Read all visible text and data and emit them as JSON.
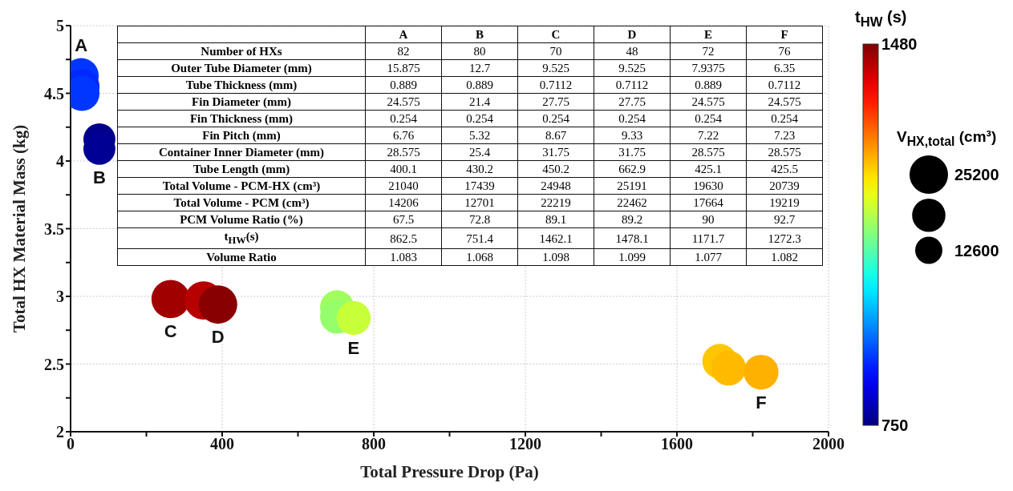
{
  "chart_data": [
    {
      "type": "bubble",
      "xlabel": "Total Pressure Drop (Pa)",
      "ylabel": "Total HX Material Mass (kg)",
      "clabel": "t$_{HW}$ (s)",
      "legend_title": "V$_{HX,total}$ (cm³)",
      "xlim": [
        0,
        2000
      ],
      "xticks": [
        0,
        {
          "value": 200,
          "label": null
        },
        400,
        {
          "value": 600,
          "label": null
        },
        800,
        {
          "value": 1000,
          "label": null
        },
        1200,
        {
          "value": 1400,
          "label": null
        },
        1600,
        {
          "value": 1800,
          "label": null
        },
        2000
      ],
      "ylim": [
        2,
        5
      ],
      "yticks": [
        2,
        {
          "value": 2.25,
          "label": null
        },
        2.5,
        {
          "value": 2.75,
          "label": null
        },
        3,
        {
          "value": 3.25,
          "label": null
        },
        3.5,
        {
          "value": 3.75,
          "label": null
        },
        4,
        {
          "value": 4.25,
          "label": null
        },
        4.5,
        {
          "value": 4.75,
          "label": null
        },
        5
      ],
      "clim": [
        750,
        1480
      ],
      "cticks": [
        750,
        1480
      ],
      "size_legend": [
        25200,
        12600
      ],
      "grid": true,
      "marker": "circle",
      "series": [
        {
          "x": [
            28,
            30,
            30,
            76,
            76,
            264,
            351,
            389,
            703,
            703,
            747,
            1713,
            1736,
            1822
          ],
          "values": [
            4.63,
            4.55,
            4.5,
            4.16,
            4.09,
            2.98,
            2.97,
            2.94,
            2.92,
            2.85,
            2.84,
            2.52,
            2.47,
            2.44
          ],
          "sizes": [
            21000,
            21000,
            21000,
            17400,
            17400,
            25000,
            25000,
            25200,
            19600,
            19600,
            19600,
            20700,
            20700,
            20700
          ],
          "cvalues": [
            880,
            870,
            880,
            760,
            765,
            1456,
            1440,
            1473,
            1138,
            1130,
            1166,
            1246,
            1255,
            1262
          ]
        }
      ],
      "annotations": [
        {
          "text": "A",
          "x": 28,
          "y": 4.63
        },
        {
          "text": "B",
          "x": 76,
          "y": 4.09
        },
        {
          "text": "C",
          "x": 264,
          "y": 2.98
        },
        {
          "text": "D",
          "x": 389,
          "y": 2.94
        },
        {
          "text": "E",
          "x": 747,
          "y": 2.84
        },
        {
          "text": "F",
          "x": 1822,
          "y": 2.44
        }
      ]
    },
    {
      "type": "other",
      "categories": [
        "A",
        "B",
        "C",
        "D",
        "E",
        "F"
      ],
      "y_categories": [
        "Number of HXs",
        "Outer Tube Diameter (mm)",
        "Tube Thickness (mm)",
        "Fin Diameter (mm)",
        "Fin Thickness (mm)",
        "Fin Pitch (mm)",
        "Container Inner Diameter (mm)",
        "Tube Length (mm)",
        "Total Volume - PCM-HX (cm³)",
        "Total Volume - PCM (cm³)",
        "PCM Volume Ratio (%)",
        "t$_{HW}$(s)",
        "Volume Ratio"
      ],
      "cell_labels": [
        [
          "82",
          "80",
          "70",
          "48",
          "72",
          "76"
        ],
        [
          "15.875",
          "12.7",
          "9.525",
          "9.525",
          "7.9375",
          "6.35"
        ],
        [
          "0.889",
          "0.889",
          "0.7112",
          "0.7112",
          "0.889",
          "0.7112"
        ],
        [
          "24.575",
          "21.4",
          "27.75",
          "27.75",
          "24.575",
          "24.575"
        ],
        [
          "0.254",
          "0.254",
          "0.254",
          "0.254",
          "0.254",
          "0.254"
        ],
        [
          "6.76",
          "5.32",
          "8.67",
          "9.33",
          "7.22",
          "7.23"
        ],
        [
          "28.575",
          "25.4",
          "31.75",
          "31.75",
          "28.575",
          "28.575"
        ],
        [
          "400.1",
          "430.2",
          "450.2",
          "662.9",
          "425.1",
          "425.5"
        ],
        [
          "21040",
          "17439",
          "24948",
          "25191",
          "19630",
          "20739"
        ],
        [
          "14206",
          "12701",
          "22219",
          "22462",
          "17664",
          "19219"
        ],
        [
          "67.5",
          "72.8",
          "89.1",
          "89.2",
          "90",
          "92.7"
        ],
        [
          "862.5",
          "751.4",
          "1462.1",
          "1478.1",
          "1171.7",
          "1272.3"
        ],
        [
          "1.083",
          "1.068",
          "1.098",
          "1.099",
          "1.077",
          "1.082"
        ]
      ]
    }
  ]
}
